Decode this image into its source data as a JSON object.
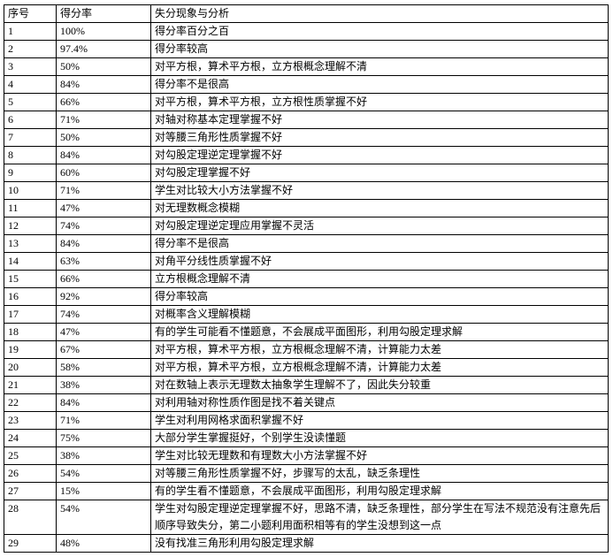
{
  "table": {
    "headers": [
      "序号",
      "得分率",
      "失分现象与分析"
    ],
    "rows": [
      [
        "1",
        "100%",
        "得分率百分之百"
      ],
      [
        "2",
        "97.4%",
        "得分率较高"
      ],
      [
        "3",
        "50%",
        "对平方根，算术平方根，立方根概念理解不清"
      ],
      [
        "4",
        "84%",
        "得分率不是很高"
      ],
      [
        "5",
        "66%",
        "对平方根，算术平方根，立方根性质掌握不好"
      ],
      [
        "6",
        "71%",
        "对轴对称基本定理掌握不好"
      ],
      [
        "7",
        "50%",
        "对等腰三角形性质掌握不好"
      ],
      [
        "8",
        "84%",
        "对勾股定理逆定理掌握不好"
      ],
      [
        "9",
        "60%",
        "对勾股定理掌握不好"
      ],
      [
        "10",
        "71%",
        "学生对比较大小方法掌握不好"
      ],
      [
        "11",
        "47%",
        "对无理数概念模糊"
      ],
      [
        "12",
        "74%",
        "对勾股定理逆定理应用掌握不灵活"
      ],
      [
        "13",
        "84%",
        "得分率不是很高"
      ],
      [
        "14",
        "63%",
        "对角平分线性质掌握不好"
      ],
      [
        "15",
        "66%",
        "立方根概念理解不清"
      ],
      [
        "16",
        "92%",
        "得分率较高"
      ],
      [
        "17",
        "74%",
        "对概率含义理解模糊"
      ],
      [
        "18",
        "47%",
        "有的学生可能看不懂题意，不会展成平面图形，利用勾股定理求解"
      ],
      [
        "19",
        "67%",
        "对平方根，算术平方根，立方根概念理解不清，计算能力太差"
      ],
      [
        "20",
        "58%",
        "对平方根，算术平方根，立方根概念理解不清，计算能力太差"
      ],
      [
        "21",
        "38%",
        "对在数轴上表示无理数太抽象学生理解不了，因此失分较重"
      ],
      [
        "22",
        "84%",
        "对利用轴对称性质作图是找不着关键点"
      ],
      [
        "23",
        "71%",
        "学生对利用网格求面积掌握不好"
      ],
      [
        "24",
        "75%",
        "大部分学生掌握挺好，个别学生没读懂题"
      ],
      [
        "25",
        "38%",
        "学生对比较无理数和有理数大小方法掌握不好"
      ],
      [
        "26",
        "54%",
        "对等腰三角形性质掌握不好，步骤写的太乱，缺乏条理性"
      ],
      [
        "27",
        "15%",
        "有的学生看不懂题意，不会展成平面图形，利用勾股定理求解"
      ],
      [
        "28",
        "54%",
        "学生对勾股定理逆定理掌握不好，思路不清，缺乏条理性，部分学生在写法不规范没有注意先后顺序导致失分，第二小题利用面积相等有的学生没想到这一点"
      ],
      [
        "29",
        "48%",
        "没有找准三角形利用勾股定理求解"
      ]
    ]
  }
}
